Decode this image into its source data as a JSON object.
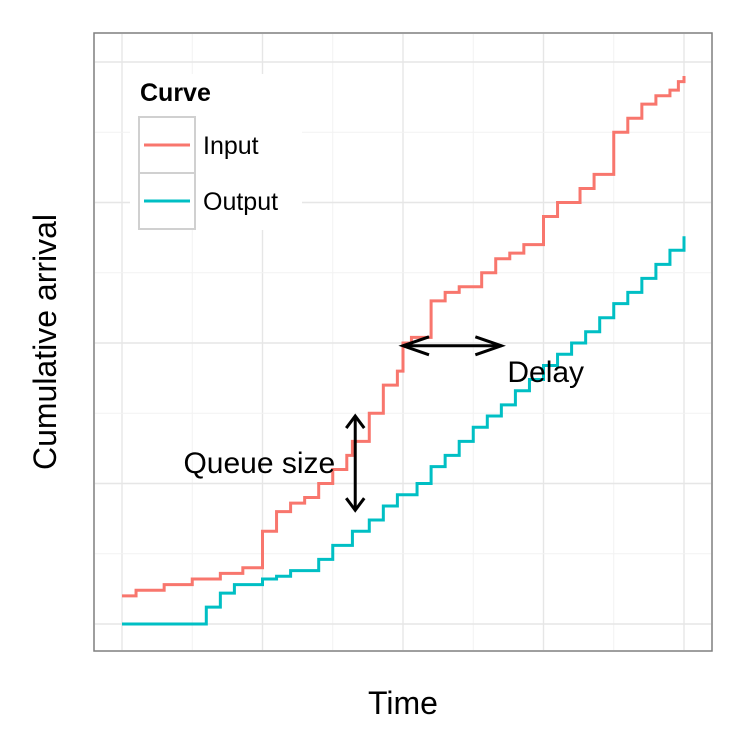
{
  "chart_data": {
    "type": "line",
    "title": "",
    "xlabel": "Time",
    "ylabel": "Cumulative arrival",
    "xlim": [
      0,
      20
    ],
    "ylim": [
      0,
      20
    ],
    "grid": true,
    "tick_labels_shown": false,
    "legend": {
      "title": "Curve",
      "placement": "top-left"
    },
    "series": [
      {
        "name": "Input",
        "color": "#F8766D",
        "step": true,
        "x": [
          0,
          0.5,
          1.5,
          2.5,
          3.5,
          4.3,
          5.0,
          5.5,
          6.0,
          6.5,
          7.0,
          7.5,
          8.0,
          8.2,
          8.8,
          9.3,
          9.8,
          10.0,
          10.3,
          11.0,
          11.5,
          12.0,
          12.8,
          13.3,
          13.8,
          14.3,
          15.0,
          15.5,
          16.3,
          16.8,
          17.5,
          18.0,
          18.5,
          19.0,
          19.5,
          19.8,
          20.0
        ],
        "y": [
          1.0,
          1.2,
          1.4,
          1.6,
          1.8,
          2.0,
          3.3,
          4.0,
          4.3,
          4.5,
          5.0,
          5.5,
          6.0,
          6.5,
          7.5,
          8.5,
          9.0,
          10.0,
          10.2,
          11.5,
          11.8,
          12.0,
          12.5,
          13.0,
          13.2,
          13.5,
          14.5,
          15.0,
          15.5,
          16.0,
          17.5,
          18.0,
          18.5,
          18.8,
          19.0,
          19.3,
          19.5
        ]
      },
      {
        "name": "Output",
        "color": "#00BFC4",
        "step": true,
        "x": [
          0,
          3.0,
          3.5,
          4.0,
          5.0,
          5.5,
          6.0,
          7.0,
          7.5,
          8.2,
          8.8,
          9.3,
          9.8,
          10.5,
          11.0,
          11.5,
          12.0,
          12.5,
          13.0,
          13.5,
          14.0,
          14.5,
          15.0,
          15.5,
          16.0,
          16.5,
          17.0,
          17.5,
          18.0,
          18.5,
          19.0,
          19.5,
          20.0
        ],
        "y": [
          0,
          0.6,
          1.1,
          1.4,
          1.6,
          1.7,
          1.9,
          2.3,
          2.8,
          3.3,
          3.7,
          4.2,
          4.6,
          5.0,
          5.6,
          6.0,
          6.5,
          7.0,
          7.4,
          7.8,
          8.3,
          8.7,
          9.2,
          9.6,
          10.0,
          10.4,
          10.9,
          11.4,
          11.8,
          12.3,
          12.8,
          13.3,
          13.8
        ]
      }
    ],
    "annotations": [
      {
        "label": "Queue size",
        "type": "vertical-double-arrow",
        "x": 8.3,
        "y_from": 4.05,
        "y_to": 7.4
      },
      {
        "label": "Delay",
        "type": "horizontal-double-arrow",
        "y": 9.9,
        "x_from": 10.0,
        "x_to": 13.5
      }
    ]
  }
}
